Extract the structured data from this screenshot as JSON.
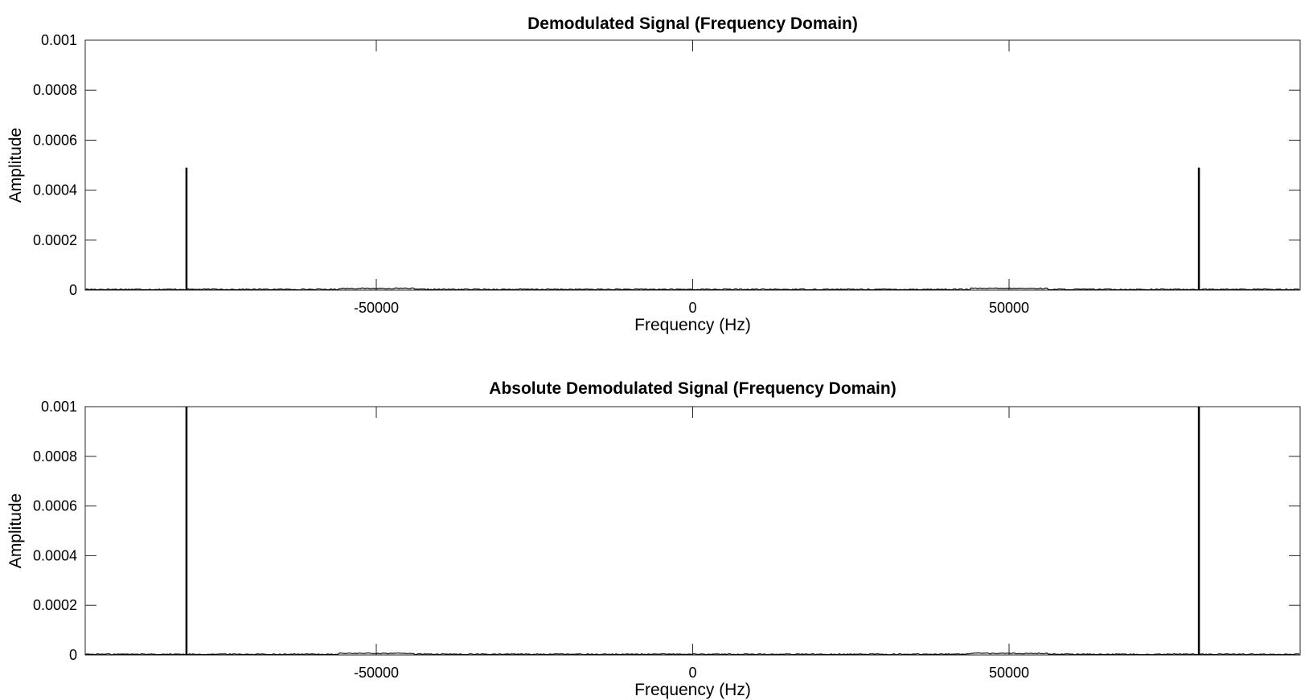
{
  "chart_data": [
    {
      "type": "line",
      "title": "Demodulated Signal (Frequency Domain)",
      "xlabel": "Frequency (Hz)",
      "ylabel": "Amplitude",
      "xlim": [
        -96000,
        96000
      ],
      "ylim": [
        0,
        0.001
      ],
      "xticks": [
        -50000,
        0,
        50000
      ],
      "xtick_labels": [
        "-50000",
        "0",
        "50000"
      ],
      "yticks": [
        0,
        0.0002,
        0.0004,
        0.0006,
        0.0008,
        0.001
      ],
      "ytick_labels": [
        "0",
        "0.0002",
        "0.0004",
        "0.0006",
        "0.0008",
        "0.001"
      ],
      "grid": false,
      "legend": "none",
      "line_color": "#000000",
      "noise_floor": 3e-06,
      "series": [
        {
          "x": [
            -96000,
            -80000,
            -79999,
            -79998,
            -50000,
            0,
            50000,
            79998,
            79999,
            80000,
            96000
          ],
          "values": [
            3e-06,
            3e-06,
            0.00049,
            3e-06,
            5e-06,
            2e-06,
            5e-06,
            3e-06,
            0.00049,
            3e-06,
            3e-06
          ]
        }
      ]
    },
    {
      "type": "line",
      "title": "Absolute Demodulated Signal (Frequency Domain)",
      "xlabel": "Frequency (Hz)",
      "ylabel": "Amplitude",
      "xlim": [
        -96000,
        96000
      ],
      "ylim": [
        0,
        0.001
      ],
      "xticks": [
        -50000,
        0,
        50000
      ],
      "xtick_labels": [
        "-50000",
        "0",
        "50000"
      ],
      "yticks": [
        0,
        0.0002,
        0.0004,
        0.0006,
        0.0008,
        0.001
      ],
      "ytick_labels": [
        "0",
        "0.0002",
        "0.0004",
        "0.0006",
        "0.0008",
        "0.001"
      ],
      "grid": false,
      "legend": "none",
      "line_color": "#000000",
      "noise_floor": 3e-06,
      "series": [
        {
          "x": [
            -96000,
            -80000,
            -79999,
            -79998,
            -50000,
            0,
            50000,
            79998,
            79999,
            80000,
            96000
          ],
          "values": [
            3e-06,
            3e-06,
            0.001,
            3e-06,
            6e-06,
            2e-06,
            6e-06,
            3e-06,
            0.001,
            3e-06,
            3e-06
          ]
        }
      ]
    }
  ]
}
